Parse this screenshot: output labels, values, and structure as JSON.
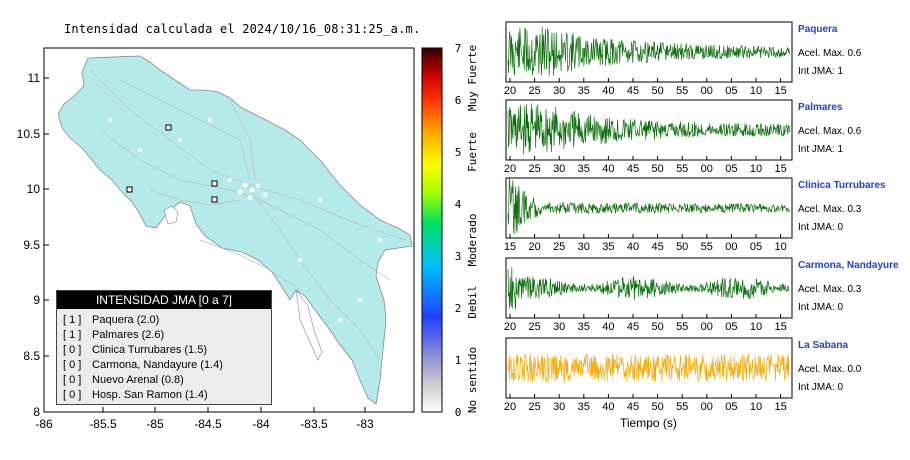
{
  "map": {
    "title": "Intensidad calculada el 2024/10/16_08:31:25_a.m.",
    "x_ticks": [
      "-86",
      "-85.5",
      "-85",
      "-84.5",
      "-84",
      "-83.5",
      "-83"
    ],
    "y_ticks": [
      "11",
      "10.5",
      "10",
      "9.5",
      "9",
      "8.5",
      "8"
    ],
    "land_color": "#b5eaea",
    "station_marker_count": 4
  },
  "colorbar": {
    "ticks": [
      "7",
      "6",
      "5",
      "4",
      "3",
      "2",
      "1",
      "0"
    ],
    "labels": [
      "Muy Fuerte",
      "Fuerte",
      "Moderado",
      "Debil",
      "No sentido"
    ]
  },
  "legend": {
    "header": "INTENSIDAD JMA [0 a 7]",
    "rows": [
      {
        "level": "[ 1 ]",
        "name": "Paquera (2.0)"
      },
      {
        "level": "[ 1 ]",
        "name": "Palmares (2.6)"
      },
      {
        "level": "[ 0 ]",
        "name": "Clinica Turrubares (1.5)"
      },
      {
        "level": "[ 0 ]",
        "name": "Carmona, Nandayure (1.4)"
      },
      {
        "level": "[ 0 ]",
        "name": "Nuevo Arenal (0.8)"
      },
      {
        "level": "[ 0 ]",
        "name": "Hosp. San Ramon (1.4)"
      }
    ]
  },
  "chart_data": {
    "type": "line",
    "xlabel": "Tiempo (s)",
    "series": [
      {
        "name": "Paquera",
        "accel": "Acel. Max. 0.6",
        "jma": "Int JMA: 1",
        "color": "#0a6e0a",
        "ticks": [
          "20",
          "25",
          "30",
          "35",
          "40",
          "45",
          "50",
          "55",
          "00",
          "05",
          "10",
          "15"
        ]
      },
      {
        "name": "Palmares",
        "accel": "Acel. Max. 0.6",
        "jma": "Int JMA: 1",
        "color": "#0a6e0a",
        "ticks": [
          "20",
          "25",
          "30",
          "35",
          "40",
          "45",
          "50",
          "55",
          "00",
          "05",
          "10",
          "15"
        ]
      },
      {
        "name": "Clinica Turrubares",
        "accel": "Acel. Max. 0.3",
        "jma": "Int JMA: 0",
        "color": "#0a6e0a",
        "ticks": [
          "15",
          "20",
          "25",
          "30",
          "35",
          "40",
          "45",
          "50",
          "55",
          "00",
          "05",
          "10"
        ]
      },
      {
        "name": "Carmona, Nandayure",
        "accel": "Acel. Max. 0.3",
        "jma": "Int JMA: 0",
        "color": "#0a6e0a",
        "ticks": [
          "20",
          "25",
          "30",
          "35",
          "40",
          "45",
          "50",
          "55",
          "00",
          "05",
          "10",
          "15"
        ]
      },
      {
        "name": "La Sabana",
        "accel": "Acel. Max. 0.0",
        "jma": "Int JMA: 0",
        "color": "#f5a800",
        "ticks": [
          "20",
          "25",
          "30",
          "35",
          "40",
          "45",
          "50",
          "55",
          "00",
          "05",
          "10",
          "15"
        ]
      }
    ]
  }
}
